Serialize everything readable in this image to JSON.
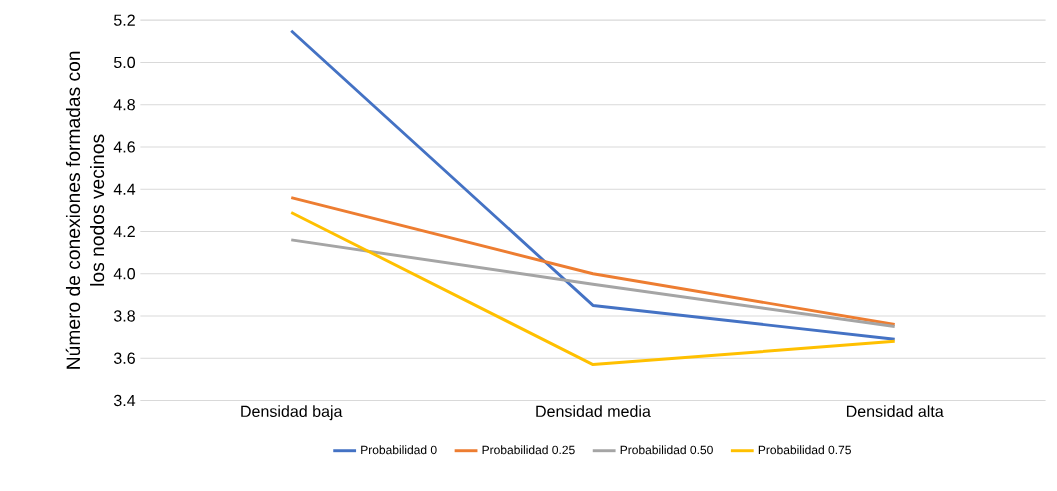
{
  "chart_data": {
    "type": "line",
    "ylabel": "Número de conexiones formadas con los nodos vecinos",
    "categories": [
      "Densidad baja",
      "Densidad media",
      "Densidad alta"
    ],
    "series": [
      {
        "name": "Probabilidad 0",
        "color": "#4472c4",
        "values": [
          5.15,
          3.85,
          3.69
        ]
      },
      {
        "name": "Probabilidad 0.25",
        "color": "#ed7d31",
        "values": [
          4.36,
          4.0,
          3.76
        ]
      },
      {
        "name": "Probabilidad 0.50",
        "color": "#a5a5a5",
        "values": [
          4.16,
          3.95,
          3.75
        ]
      },
      {
        "name": "Probabilidad 0.75",
        "color": "#ffc000",
        "values": [
          4.29,
          3.57,
          3.68
        ]
      }
    ],
    "ylim": [
      3.4,
      5.2
    ],
    "yticks": [
      {
        "value": 3.4,
        "label": "3.4"
      },
      {
        "value": 3.6,
        "label": "3.6"
      },
      {
        "value": 3.8,
        "label": "3.8"
      },
      {
        "value": 4.0,
        "label": "4.0"
      },
      {
        "value": 4.2,
        "label": "4.2"
      },
      {
        "value": 4.4,
        "label": "4.4"
      },
      {
        "value": 4.6,
        "label": "4.6"
      },
      {
        "value": 4.8,
        "label": "4.8"
      },
      {
        "value": 5.0,
        "label": "5.0"
      },
      {
        "value": 5.2,
        "label": "5.2"
      }
    ],
    "grid": "y",
    "legend": "bottom",
    "marker": "none",
    "line_style": "solid"
  }
}
